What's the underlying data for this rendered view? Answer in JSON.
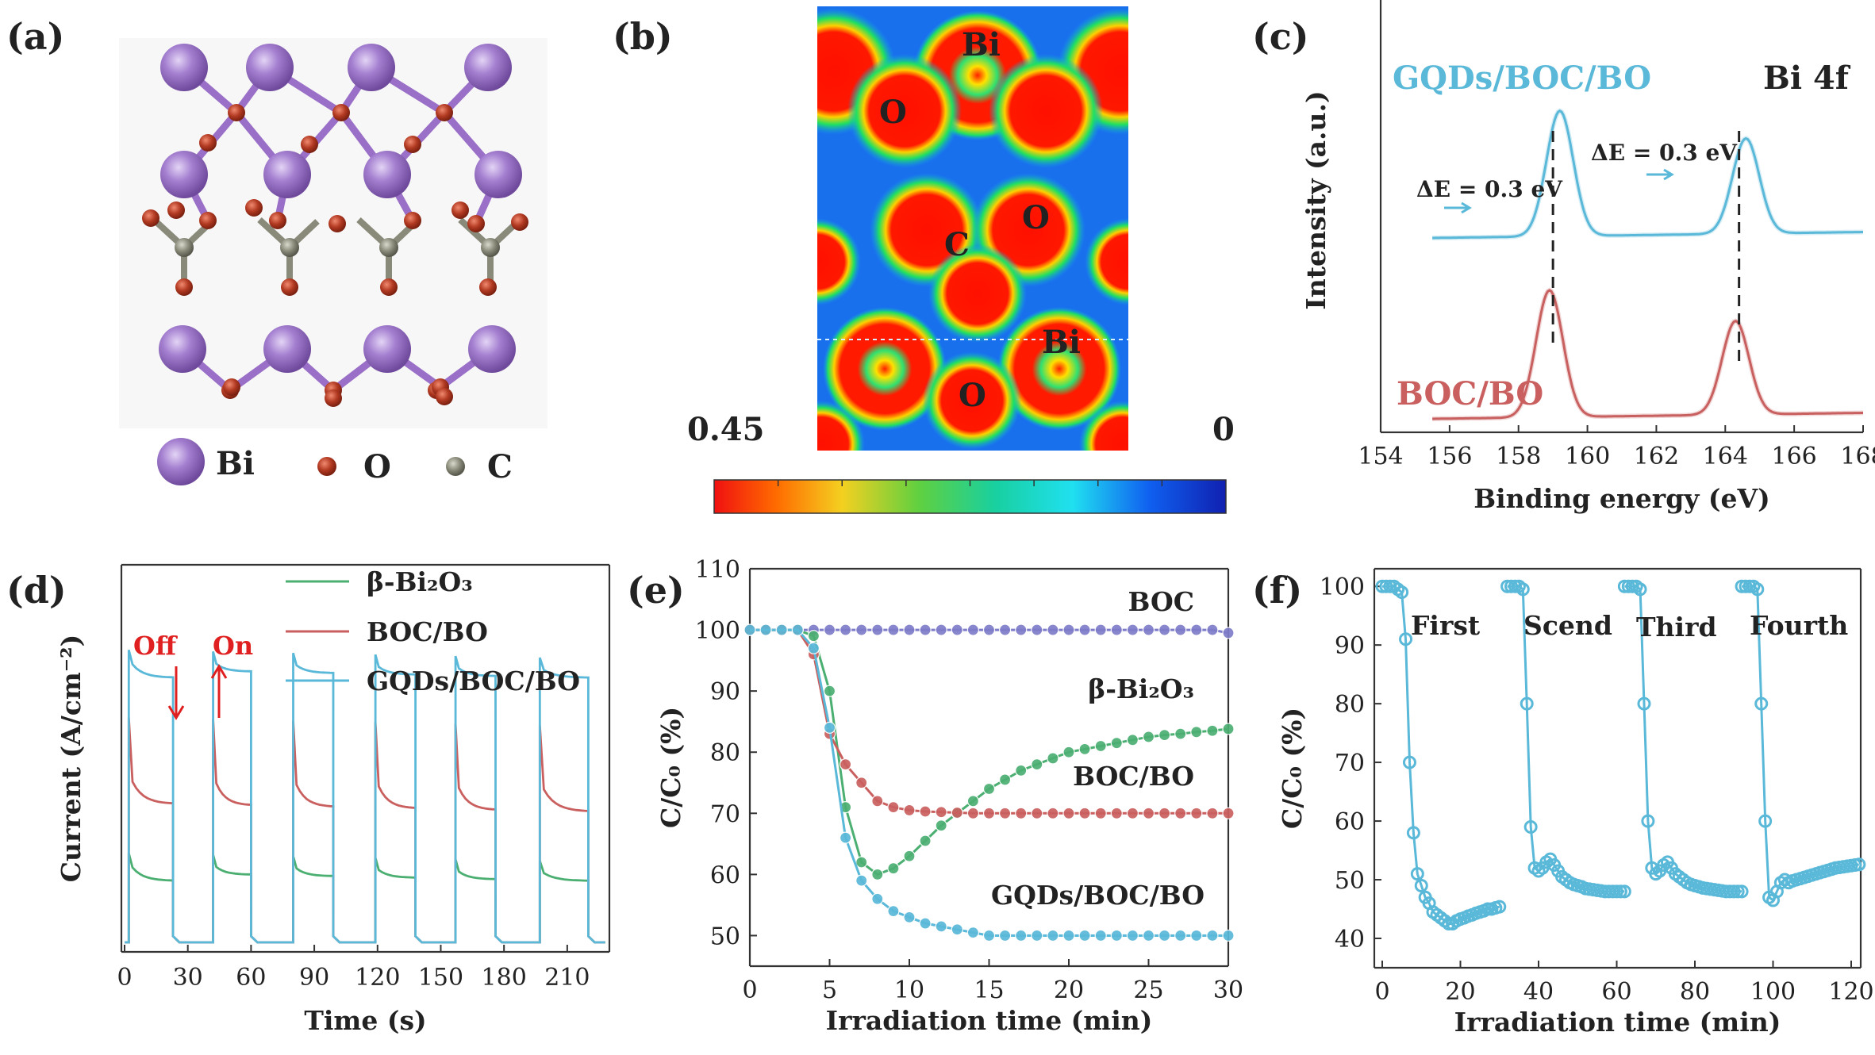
{
  "panels": {
    "a": {
      "label": "(a)",
      "legend": [
        {
          "symbol": "Bi",
          "color": "#a47fd0"
        },
        {
          "symbol": "O",
          "color": "#b23a22"
        },
        {
          "symbol": "C",
          "color": "#8a8a7a"
        }
      ]
    },
    "b": {
      "label": "(b)",
      "atom_labels": [
        "Bi",
        "O",
        "C",
        "O",
        "Bi",
        "O"
      ],
      "scale_max": "0.45",
      "scale_min": "0"
    }
  },
  "chart_data": [
    {
      "panel": "(c)",
      "type": "line",
      "title": "Bi 4f",
      "xlabel": "Binding energy (eV)",
      "ylabel": "Intensity (a.u.)",
      "xlim": [
        154,
        168
      ],
      "xticks": [
        "154",
        "156",
        "158",
        "160",
        "162",
        "164",
        "166",
        "168"
      ],
      "series": [
        {
          "name": "GQDs/BOC/BO",
          "color": "#5ab8d8",
          "peaks": [
            159.2,
            164.6
          ]
        },
        {
          "name": "BOC/BO",
          "color": "#c9605f",
          "peaks": [
            158.9,
            164.3
          ]
        }
      ],
      "annotations": [
        "ΔE = 0.3 eV",
        "ΔE = 0.3 eV"
      ]
    },
    {
      "panel": "(d)",
      "type": "line",
      "xlabel": "Time (s)",
      "ylabel": "Current (A/cm⁻²)",
      "xlim": [
        0,
        230
      ],
      "xticks": [
        "0",
        "30",
        "60",
        "90",
        "120",
        "150",
        "180",
        "210"
      ],
      "legend": [
        "β-Bi₂O₃",
        "BOC/BO",
        "GQDs/BOC/BO"
      ],
      "annotations": [
        "Off",
        "On"
      ],
      "light_on_intervals": [
        [
          2,
          23
        ],
        [
          42,
          60
        ],
        [
          80,
          99
        ],
        [
          119,
          138
        ],
        [
          157,
          176
        ],
        [
          197,
          220
        ]
      ],
      "series": [
        {
          "name": "β-Bi₂O₃",
          "color": "#4caf72",
          "plateau": 0.26
        },
        {
          "name": "BOC/BO",
          "color": "#c9605f",
          "plateau": 0.55
        },
        {
          "name": "GQDs/BOC/BO",
          "color": "#5ab8d8",
          "plateau": 0.92
        }
      ]
    },
    {
      "panel": "(e)",
      "type": "line",
      "xlabel": "Irradiation time (min)",
      "ylabel": "C/C₀ (%)",
      "xlim": [
        0,
        30
      ],
      "ylim": [
        45,
        110
      ],
      "xticks": [
        "0",
        "5",
        "10",
        "15",
        "20",
        "25",
        "30"
      ],
      "yticks": [
        "50",
        "60",
        "70",
        "80",
        "90",
        "100",
        "110"
      ],
      "x": [
        0,
        1,
        2,
        3,
        4,
        5,
        6,
        7,
        8,
        9,
        10,
        11,
        12,
        13,
        14,
        15,
        16,
        17,
        18,
        19,
        20,
        21,
        22,
        23,
        24,
        25,
        26,
        27,
        28,
        29,
        30
      ],
      "series": [
        {
          "name": "BOC",
          "color": "#7e7cc9",
          "values": [
            100,
            100,
            100,
            100,
            100,
            100,
            100,
            100,
            100,
            100,
            100,
            100,
            100,
            100,
            100,
            100,
            100,
            100,
            100,
            100,
            100,
            100,
            100,
            100,
            100,
            100,
            100,
            100,
            100,
            100,
            99.5
          ]
        },
        {
          "name": "β-Bi₂O₃",
          "color": "#4caf72",
          "values": [
            100,
            100,
            100,
            100,
            99,
            90,
            71,
            62,
            60,
            61,
            63,
            65.5,
            68,
            70,
            72,
            74,
            75.5,
            77,
            78,
            79,
            80,
            80.5,
            81,
            81.5,
            82,
            82.5,
            82.8,
            83,
            83.3,
            83.5,
            83.8
          ]
        },
        {
          "name": "BOC/BO",
          "color": "#c9605f",
          "values": [
            100,
            100,
            100,
            100,
            96,
            83,
            78,
            75,
            72,
            71,
            70.5,
            70.3,
            70.2,
            70.1,
            70,
            70,
            70,
            70,
            70,
            70,
            70,
            70,
            70,
            70,
            70,
            70,
            70,
            70,
            70,
            70,
            70
          ]
        },
        {
          "name": "GQDs/BOC/BO",
          "color": "#5ab8d8",
          "values": [
            100,
            100,
            100,
            100,
            97,
            84,
            66,
            59,
            56,
            54,
            53,
            52,
            51.5,
            51,
            50.5,
            50,
            50,
            50,
            50,
            50,
            50,
            50,
            50,
            50,
            50,
            50,
            50,
            50,
            50,
            50,
            50
          ]
        }
      ]
    },
    {
      "panel": "(f)",
      "type": "line",
      "xlabel": "Irradiation time (min)",
      "ylabel": "C/C₀ (%)",
      "xlim": [
        0,
        120
      ],
      "ylim": [
        35,
        103
      ],
      "xticks": [
        "0",
        "20",
        "40",
        "60",
        "80",
        "100",
        "120"
      ],
      "yticks": [
        "40",
        "50",
        "60",
        "70",
        "80",
        "90",
        "100"
      ],
      "cycle_labels": [
        "First",
        "Scend",
        "Third",
        "Fourth"
      ],
      "series": [
        {
          "name": "GQDs/BOC/BO",
          "color": "#5ab8d8",
          "cycles": [
            {
              "x": [
                0,
                1,
                2,
                3,
                4,
                5,
                6,
                7,
                8,
                9,
                10,
                11,
                12,
                13,
                14,
                15,
                16,
                17,
                18,
                19,
                20,
                21,
                22,
                23,
                24,
                25,
                26,
                27,
                28,
                29,
                30
              ],
              "y": [
                100,
                100,
                100,
                100,
                99.5,
                99,
                91,
                70,
                58,
                51,
                49,
                47,
                46,
                44.5,
                44,
                43.5,
                43,
                42.5,
                42.5,
                43,
                43.3,
                43.5,
                43.8,
                44,
                44.3,
                44.5,
                44.7,
                45,
                45,
                45.2,
                45.4
              ]
            },
            {
              "x": [
                30,
                31,
                32,
                33,
                34,
                35,
                36,
                37,
                38,
                39,
                40,
                41,
                42,
                43,
                44,
                45,
                46,
                47,
                48,
                49,
                50,
                51,
                52,
                53,
                54,
                55,
                56,
                57,
                58,
                59,
                60
              ],
              "y": [
                100,
                100,
                100,
                100,
                99.5,
                80,
                59,
                52,
                51.5,
                52,
                53,
                53.5,
                52.5,
                51.5,
                50.5,
                50,
                49.5,
                49.2,
                49,
                48.8,
                48.5,
                48.4,
                48.3,
                48.2,
                48.1,
                48,
                48,
                48,
                48,
                48,
                48
              ]
            },
            {
              "x": [
                60,
                61,
                62,
                63,
                64,
                65,
                66,
                67,
                68,
                69,
                70,
                71,
                72,
                73,
                74,
                75,
                76,
                77,
                78,
                79,
                80,
                81,
                82,
                83,
                84,
                85,
                86,
                87,
                88,
                89,
                90
              ],
              "y": [
                100,
                100,
                100,
                100,
                99.5,
                80,
                60,
                52,
                51,
                51.5,
                52.5,
                53,
                52,
                51,
                50.5,
                50,
                49.5,
                49.2,
                49,
                48.8,
                48.6,
                48.5,
                48.4,
                48.3,
                48.2,
                48.1,
                48,
                48,
                48,
                48,
                48
              ]
            },
            {
              "x": [
                90,
                91,
                92,
                93,
                94,
                95,
                96,
                97,
                98,
                99,
                100,
                101,
                102,
                103,
                104,
                105,
                106,
                107,
                108,
                109,
                110,
                111,
                112,
                113,
                114,
                115,
                116,
                117,
                118,
                119,
                120
              ],
              "y": [
                100,
                100,
                100,
                100,
                99.5,
                80,
                60,
                47,
                46.5,
                48,
                49.5,
                50,
                49.5,
                49.8,
                50,
                50.2,
                50.4,
                50.6,
                50.8,
                51,
                51.2,
                51.4,
                51.6,
                51.8,
                52,
                52.1,
                52.2,
                52.3,
                52.4,
                52.5,
                52.6
              ]
            }
          ]
        }
      ]
    }
  ]
}
